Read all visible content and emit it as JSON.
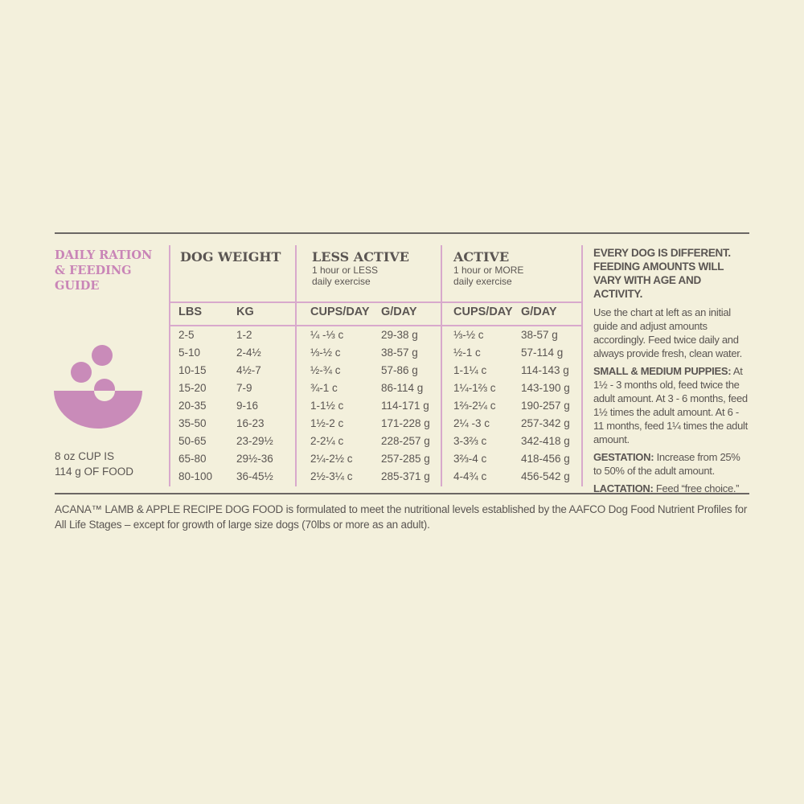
{
  "guide": {
    "title": "DAILY RATION & FEEDING GUIDE",
    "cup_note": [
      "8 oz CUP IS",
      "114 g OF FOOD"
    ]
  },
  "table": {
    "groups": [
      {
        "title": "DOG WEIGHT"
      },
      {
        "title": "LESS ACTIVE",
        "subtitle": [
          "1 hour or LESS",
          "daily exercise"
        ]
      },
      {
        "title": "ACTIVE",
        "subtitle": [
          "1 hour or MORE",
          "daily exercise"
        ]
      }
    ],
    "columns": [
      "LBS",
      "KG",
      "CUPS/DAY",
      "G/DAY",
      "CUPS/DAY",
      "G/DAY"
    ],
    "rows": [
      [
        "2-5",
        "1-2",
        "¼ -⅓ c",
        "29-38 g",
        "⅓-½ c",
        "38-57 g"
      ],
      [
        "5-10",
        "2-4½",
        "⅓-½ c",
        "38-57 g",
        "½-1 c",
        "57-114 g"
      ],
      [
        "10-15",
        "4½-7",
        "½-¾ c",
        "57-86 g",
        "1-1¼ c",
        "114-143 g"
      ],
      [
        "15-20",
        "7-9",
        "¾-1 c",
        "86-114 g",
        "1¼-1⅔ c",
        "143-190 g"
      ],
      [
        "20-35",
        "9-16",
        "1-1½ c",
        "114-171 g",
        "1⅔-2¼ c",
        "190-257 g"
      ],
      [
        "35-50",
        "16-23",
        "1½-2 c",
        "171-228 g",
        "2¼ -3 c",
        "257-342 g"
      ],
      [
        "50-65",
        "23-29½",
        "2-2¼ c",
        "228-257 g",
        "3-3⅔ c",
        "342-418 g"
      ],
      [
        "65-80",
        "29½-36",
        "2¼-2½ c",
        "257-285 g",
        "3⅔-4 c",
        "418-456 g"
      ],
      [
        "80-100",
        "36-45½",
        "2½-3¼ c",
        "285-371 g",
        "4-4¾ c",
        "456-542 g"
      ]
    ]
  },
  "notes": {
    "heading": "EVERY DOG IS DIFFERENT. FEEDING AMOUNTS WILL VARY WITH AGE AND ACTIVITY.",
    "intro": "Use the chart at left as an initial guide and adjust amounts accordingly. Feed twice daily and always provide fresh, clean water.",
    "sections": [
      {
        "label": "SMALL & MEDIUM PUPPIES:",
        "text": "At 1½ - 3 months old, feed twice the adult amount. At 3 - 6 months, feed 1½ times the adult amount. At 6 - 11 months, feed 1¼ times the adult amount."
      },
      {
        "label": "GESTATION:",
        "text": "Increase from 25% to 50% of the adult amount."
      },
      {
        "label": "LACTATION:",
        "text": "Feed “free choice.”"
      }
    ]
  },
  "footnote": "ACANA™ LAMB & APPLE RECIPE DOG FOOD is formulated to meet the nutritional levels established by the AAFCO Dog Food Nutrient Profiles for All Life Stages – except for growth of large size dogs (70lbs or more as an adult)."
}
